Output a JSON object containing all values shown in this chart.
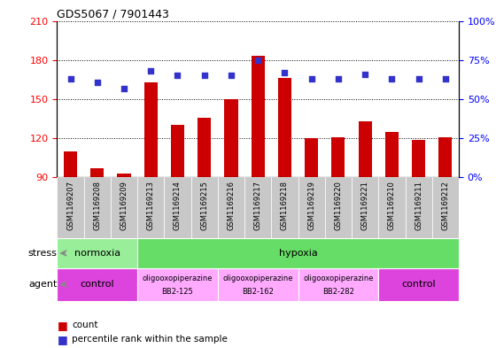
{
  "title": "GDS5067 / 7901443",
  "samples": [
    "GSM1169207",
    "GSM1169208",
    "GSM1169209",
    "GSM1169213",
    "GSM1169214",
    "GSM1169215",
    "GSM1169216",
    "GSM1169217",
    "GSM1169218",
    "GSM1169219",
    "GSM1169220",
    "GSM1169221",
    "GSM1169210",
    "GSM1169211",
    "GSM1169212"
  ],
  "counts": [
    110,
    97,
    93,
    163,
    130,
    136,
    150,
    183,
    166,
    120,
    121,
    133,
    125,
    119,
    121
  ],
  "percentiles": [
    63,
    61,
    57,
    68,
    65,
    65,
    65,
    75,
    67,
    63,
    63,
    66,
    63,
    63,
    63
  ],
  "ylim_left": [
    90,
    210
  ],
  "ylim_right": [
    0,
    100
  ],
  "yticks_left": [
    90,
    120,
    150,
    180,
    210
  ],
  "yticks_right": [
    0,
    25,
    50,
    75,
    100
  ],
  "bar_color": "#cc0000",
  "dot_color": "#3333cc",
  "bar_baseline": 90,
  "stress_groups": [
    {
      "label": "normoxia",
      "start": 0,
      "end": 3,
      "color": "#99ee99"
    },
    {
      "label": "hypoxia",
      "start": 3,
      "end": 15,
      "color": "#66dd66"
    }
  ],
  "agent_groups": [
    {
      "label": "control",
      "start": 0,
      "end": 3,
      "color": "#dd44dd",
      "text_lines": [
        "control"
      ]
    },
    {
      "label": "oligooxopiperazine\nBB2-125",
      "start": 3,
      "end": 6,
      "color": "#ffaaff",
      "text_lines": [
        "oligooxopiperazine",
        "BB2-125"
      ]
    },
    {
      "label": "oligooxopiperazine\nBB2-162",
      "start": 6,
      "end": 9,
      "color": "#ffaaff",
      "text_lines": [
        "oligooxopiperazine",
        "BB2-162"
      ]
    },
    {
      "label": "oligooxopiperazine\nBB2-282",
      "start": 9,
      "end": 12,
      "color": "#ffaaff",
      "text_lines": [
        "oligooxopiperazine",
        "BB2-282"
      ]
    },
    {
      "label": "control",
      "start": 12,
      "end": 15,
      "color": "#dd44dd",
      "text_lines": [
        "control"
      ]
    }
  ],
  "tick_bg_color": "#c8c8c8",
  "plot_bg_color": "#ffffff",
  "stress_label": "stress",
  "agent_label": "agent",
  "legend_count": "count",
  "legend_percentile": "percentile rank within the sample"
}
